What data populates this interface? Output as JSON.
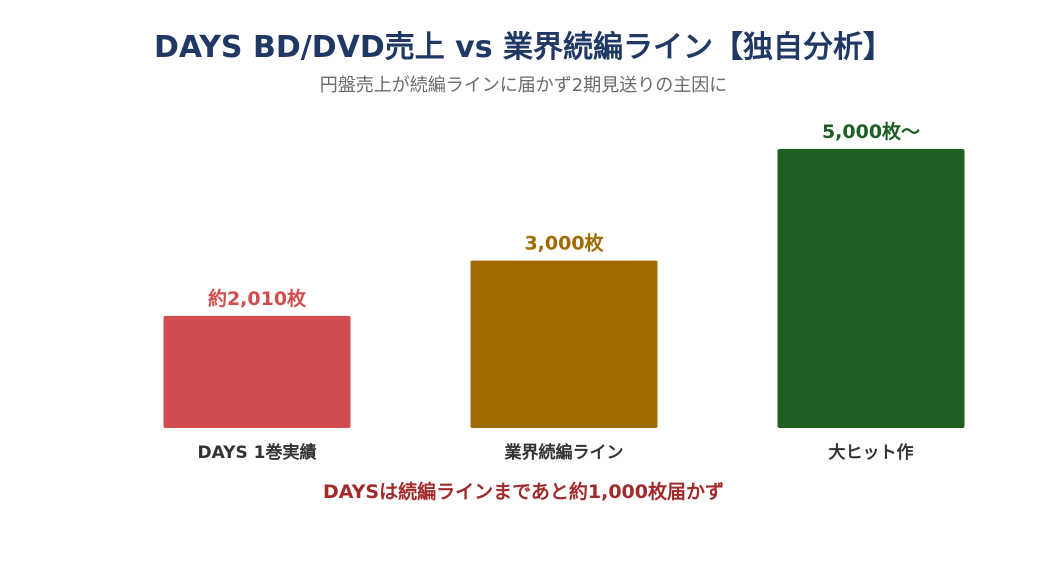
{
  "title": "DAYS BD/DVD売上 vs 業界続編ライン【独自分析】",
  "subtitle": "円盤売上が続編ラインに届かず2期見送りの主因に",
  "footnote": "DAYSは続編ラインまであと約1,000枚届かず",
  "chart_data": {
    "type": "bar",
    "title": "DAYS BD/DVD売上 vs 業界続編ライン【独自分析】",
    "subtitle": "円盤売上が続編ラインに届かず2期見送りの主因に",
    "categories": [
      "DAYS 1巻実績",
      "業界続編ライン",
      "大ヒット作"
    ],
    "values": [
      2010,
      3000,
      5000
    ],
    "data_labels": [
      "約2,010枚",
      "3,000枚",
      "5,000枚〜"
    ],
    "colors": [
      "#d24d4d",
      "#a06a00",
      "#1e5e21"
    ],
    "xlabel": "",
    "ylabel": "",
    "ylim": [
      0,
      5000
    ],
    "grid": false,
    "legend": "none"
  }
}
